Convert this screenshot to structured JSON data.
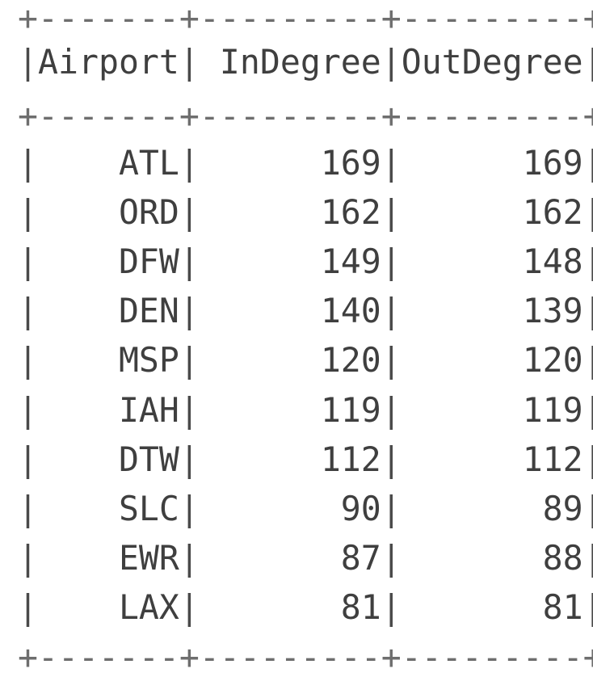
{
  "separator": "+-------+---------+---------+",
  "columns": [
    "Airport",
    "InDegree",
    "OutDegree"
  ],
  "rows": [
    [
      "ATL",
      "169",
      "169"
    ],
    [
      "ORD",
      "162",
      "162"
    ],
    [
      "DFW",
      "149",
      "148"
    ],
    [
      "DEN",
      "140",
      "139"
    ],
    [
      "MSP",
      "120",
      "120"
    ],
    [
      "IAH",
      "119",
      "119"
    ],
    [
      "DTW",
      "112",
      "112"
    ],
    [
      "SLC",
      "90",
      "89"
    ],
    [
      "EWR",
      "87",
      "88"
    ],
    [
      "LAX",
      "81",
      "81"
    ]
  ]
}
